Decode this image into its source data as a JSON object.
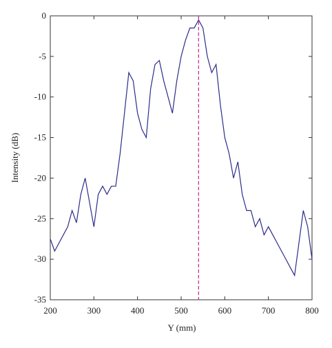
{
  "chart_data": {
    "type": "line",
    "xlabel": "Y (mm)",
    "ylabel": "Intensity (dB)",
    "x": [
      200,
      210,
      220,
      230,
      240,
      250,
      260,
      270,
      280,
      290,
      300,
      310,
      320,
      330,
      340,
      350,
      360,
      370,
      380,
      390,
      400,
      410,
      420,
      430,
      440,
      450,
      460,
      470,
      480,
      490,
      500,
      510,
      520,
      530,
      540,
      550,
      560,
      570,
      580,
      590,
      600,
      610,
      620,
      630,
      640,
      650,
      660,
      670,
      680,
      690,
      700,
      710,
      720,
      730,
      740,
      750,
      760,
      770,
      780,
      790,
      800
    ],
    "series": [
      {
        "name": "Intensity",
        "color": "#2b2b8c",
        "values": [
          -27.5,
          -29,
          -28,
          -27,
          -26,
          -24,
          -25.5,
          -22,
          -20,
          -23,
          -26,
          -22,
          -21,
          -22,
          -21,
          -21,
          -17,
          -12,
          -7,
          -8,
          -12,
          -14,
          -15,
          -9,
          -6,
          -5.5,
          -8,
          -10,
          -12,
          -8,
          -5,
          -3,
          -1.5,
          -1.5,
          -0.5,
          -1.5,
          -5,
          -7,
          -6,
          -11,
          -15,
          -17,
          -20,
          -18,
          -22,
          -24,
          -24,
          -26,
          -25,
          -27,
          -26,
          -27,
          -28,
          -29,
          -30,
          -31,
          -32,
          -28,
          -24,
          -26,
          -30
        ]
      }
    ],
    "vline": {
      "x": 540,
      "color": "#cc3399"
    },
    "xlim": [
      200,
      800
    ],
    "ylim": [
      -35,
      0
    ],
    "xticks": [
      200,
      300,
      400,
      500,
      600,
      700,
      800
    ],
    "yticks": [
      -35,
      -30,
      -25,
      -20,
      -15,
      -10,
      -5,
      0
    ]
  }
}
